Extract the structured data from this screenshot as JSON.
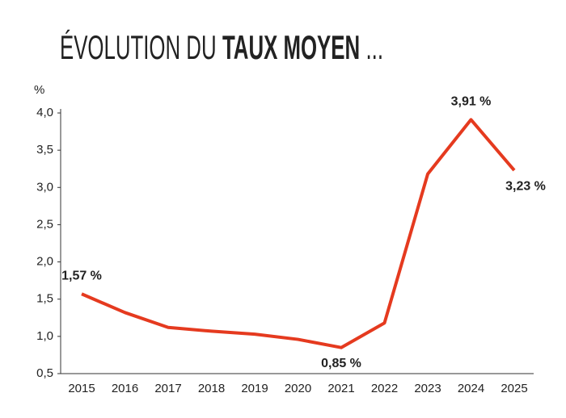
{
  "chart_data": {
    "type": "line",
    "title": [
      "ÉVOLUTION DU",
      "TAUX MOYEN",
      "..."
    ],
    "y_label": "%",
    "categories": [
      "2015",
      "2016",
      "2017",
      "2018",
      "2019",
      "2020",
      "2021",
      "2022",
      "2023",
      "2024",
      "2025"
    ],
    "series": [
      {
        "color": "#e53a1f",
        "values": [
          1.57,
          1.32,
          1.12,
          1.07,
          1.03,
          0.96,
          0.85,
          1.18,
          3.18,
          3.91,
          3.23
        ],
        "value_labels": [
          "1,57 %",
          null,
          null,
          null,
          null,
          null,
          "0,85 %",
          null,
          null,
          "3,91 %",
          "3,23 %"
        ]
      }
    ],
    "ylim": [
      0.5,
      4.0
    ],
    "yticks": [
      {
        "value": 0.5,
        "label": "0,5"
      },
      {
        "value": 1.0,
        "label": "1,0"
      },
      {
        "value": 1.5,
        "label": "1,5"
      },
      {
        "value": 2.0,
        "label": "2,0"
      },
      {
        "value": 2.5,
        "label": "2,5"
      },
      {
        "value": 3.0,
        "label": "3,0"
      },
      {
        "value": 3.5,
        "label": "3,5"
      },
      {
        "value": 4.0,
        "label": "4,0"
      }
    ],
    "grid": false
  }
}
